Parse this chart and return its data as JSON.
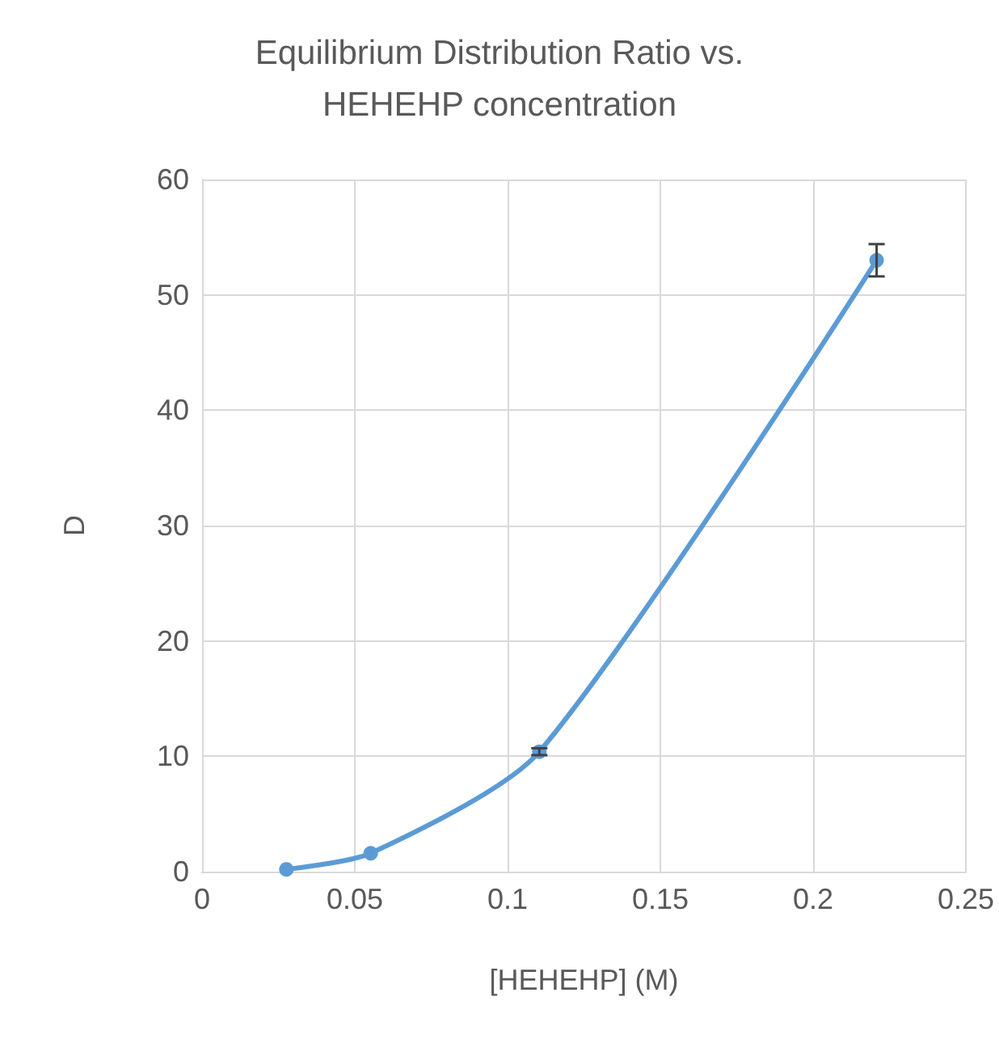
{
  "chart_data": {
    "type": "line",
    "title": "Equilibrium Distribution Ratio vs.\nHEHEHP concentration",
    "xlabel": "[HEHEHP] (M)",
    "ylabel": "D",
    "x": [
      0.0276,
      0.0552,
      0.1104,
      0.2208
    ],
    "series": [
      {
        "color": "#5b9bd5",
        "values": [
          0.2,
          1.6,
          10.4,
          53.0
        ],
        "errors": [
          null,
          null,
          0.3,
          1.4
        ]
      }
    ],
    "xlim": [
      0,
      0.25
    ],
    "xticks": [
      0,
      0.05,
      0.1,
      0.15,
      0.2,
      0.25
    ],
    "ylim": [
      0,
      60
    ],
    "yticks": [
      0,
      10,
      20,
      30,
      40,
      50,
      60
    ],
    "grid": true,
    "marker": "circle",
    "line_style": "solid"
  }
}
